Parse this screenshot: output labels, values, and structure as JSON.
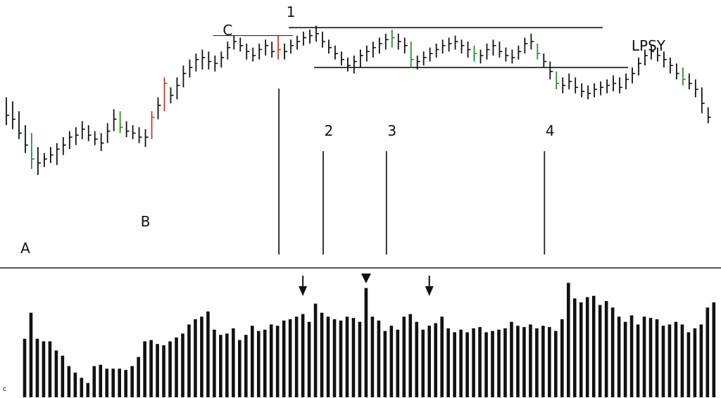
{
  "chart_data": [
    {
      "type": "bar",
      "subtype": "ohlc-price-bars",
      "title": "",
      "xlabel": "",
      "ylabel": "",
      "grid": false,
      "bar_count": 112,
      "ylim": [
        0,
        100
      ],
      "bars": [
        {
          "i": 0,
          "high": 73,
          "low": 59,
          "close": 64,
          "color": "#111111"
        },
        {
          "i": 1,
          "high": 71,
          "low": 57,
          "close": 62,
          "color": "#111111"
        },
        {
          "i": 2,
          "high": 66,
          "low": 52,
          "close": 55,
          "color": "#111111"
        },
        {
          "i": 3,
          "high": 59,
          "low": 45,
          "close": 49,
          "color": "#111111"
        },
        {
          "i": 4,
          "high": 55,
          "low": 37,
          "close": 42,
          "color": "#2e8b2e"
        },
        {
          "i": 5,
          "high": 48,
          "low": 34,
          "close": 40,
          "color": "#111111"
        },
        {
          "i": 6,
          "high": 45,
          "low": 38,
          "close": 42,
          "color": "#111111"
        },
        {
          "i": 7,
          "high": 48,
          "low": 40,
          "close": 44,
          "color": "#111111"
        },
        {
          "i": 8,
          "high": 50,
          "low": 39,
          "close": 47,
          "color": "#111111"
        },
        {
          "i": 9,
          "high": 53,
          "low": 44,
          "close": 49,
          "color": "#111111"
        },
        {
          "i": 10,
          "high": 56,
          "low": 47,
          "close": 53,
          "color": "#111111"
        },
        {
          "i": 11,
          "high": 58,
          "low": 49,
          "close": 54,
          "color": "#111111"
        },
        {
          "i": 12,
          "high": 61,
          "low": 52,
          "close": 57,
          "color": "#111111"
        },
        {
          "i": 13,
          "high": 59,
          "low": 51,
          "close": 54,
          "color": "#111111"
        },
        {
          "i": 14,
          "high": 56,
          "low": 49,
          "close": 52,
          "color": "#111111"
        },
        {
          "i": 15,
          "high": 55,
          "low": 46,
          "close": 50,
          "color": "#111111"
        },
        {
          "i": 16,
          "high": 60,
          "low": 50,
          "close": 56,
          "color": "#111111"
        },
        {
          "i": 17,
          "high": 67,
          "low": 56,
          "close": 62,
          "color": "#111111"
        },
        {
          "i": 18,
          "high": 66,
          "low": 55,
          "close": 58,
          "color": "#2e8b2e"
        },
        {
          "i": 19,
          "high": 61,
          "low": 53,
          "close": 56,
          "color": "#111111"
        },
        {
          "i": 20,
          "high": 59,
          "low": 52,
          "close": 55,
          "color": "#111111"
        },
        {
          "i": 21,
          "high": 58,
          "low": 50,
          "close": 53,
          "color": "#111111"
        },
        {
          "i": 22,
          "high": 57,
          "low": 48,
          "close": 53,
          "color": "#111111"
        },
        {
          "i": 23,
          "high": 66,
          "low": 52,
          "close": 63,
          "color": "#cc3333"
        },
        {
          "i": 24,
          "high": 73,
          "low": 62,
          "close": 69,
          "color": "#111111"
        },
        {
          "i": 25,
          "high": 83,
          "low": 66,
          "close": 80,
          "color": "#cc3333"
        },
        {
          "i": 26,
          "high": 78,
          "low": 70,
          "close": 74,
          "color": "#111111"
        },
        {
          "i": 27,
          "high": 83,
          "low": 72,
          "close": 79,
          "color": "#111111"
        },
        {
          "i": 28,
          "high": 89,
          "low": 78,
          "close": 85,
          "color": "#111111"
        },
        {
          "i": 29,
          "high": 92,
          "low": 83,
          "close": 88,
          "color": "#111111"
        },
        {
          "i": 30,
          "high": 95,
          "low": 86,
          "close": 92,
          "color": "#111111"
        },
        {
          "i": 31,
          "high": 97,
          "low": 87,
          "close": 93,
          "color": "#111111"
        },
        {
          "i": 32,
          "high": 96,
          "low": 87,
          "close": 91,
          "color": "#111111"
        },
        {
          "i": 33,
          "high": 94,
          "low": 86,
          "close": 90,
          "color": "#111111"
        },
        {
          "i": 34,
          "high": 96,
          "low": 88,
          "close": 93,
          "color": "#111111"
        },
        {
          "i": 35,
          "high": 101,
          "low": 92,
          "close": 98,
          "color": "#111111"
        },
        {
          "i": 36,
          "high": 104,
          "low": 97,
          "close": 101,
          "color": "#111111"
        },
        {
          "i": 37,
          "high": 103,
          "low": 96,
          "close": 99,
          "color": "#111111"
        },
        {
          "i": 38,
          "high": 100,
          "low": 92,
          "close": 96,
          "color": "#111111"
        },
        {
          "i": 39,
          "high": 98,
          "low": 91,
          "close": 94,
          "color": "#111111"
        },
        {
          "i": 40,
          "high": 100,
          "low": 92,
          "close": 97,
          "color": "#111111"
        },
        {
          "i": 41,
          "high": 102,
          "low": 94,
          "close": 99,
          "color": "#111111"
        },
        {
          "i": 42,
          "high": 101,
          "low": 93,
          "close": 96,
          "color": "#111111"
        },
        {
          "i": 43,
          "high": 104,
          "low": 92,
          "close": 97,
          "color": "#cc3333"
        },
        {
          "i": 44,
          "high": 100,
          "low": 92,
          "close": 96,
          "color": "#111111"
        },
        {
          "i": 45,
          "high": 102,
          "low": 95,
          "close": 99,
          "color": "#111111"
        },
        {
          "i": 46,
          "high": 104,
          "low": 97,
          "close": 101,
          "color": "#111111"
        },
        {
          "i": 47,
          "high": 106,
          "low": 99,
          "close": 103,
          "color": "#111111"
        },
        {
          "i": 48,
          "high": 107,
          "low": 100,
          "close": 104,
          "color": "#111111"
        },
        {
          "i": 49,
          "high": 109,
          "low": 101,
          "close": 105,
          "color": "#111111"
        },
        {
          "i": 50,
          "high": 106,
          "low": 98,
          "close": 101,
          "color": "#111111"
        },
        {
          "i": 51,
          "high": 102,
          "low": 95,
          "close": 98,
          "color": "#111111"
        },
        {
          "i": 52,
          "high": 99,
          "low": 92,
          "close": 95,
          "color": "#111111"
        },
        {
          "i": 53,
          "high": 96,
          "low": 89,
          "close": 92,
          "color": "#111111"
        },
        {
          "i": 54,
          "high": 93,
          "low": 86,
          "close": 89,
          "color": "#111111"
        },
        {
          "i": 55,
          "high": 94,
          "low": 85,
          "close": 91,
          "color": "#111111"
        },
        {
          "i": 56,
          "high": 97,
          "low": 88,
          "close": 94,
          "color": "#111111"
        },
        {
          "i": 57,
          "high": 99,
          "low": 91,
          "close": 96,
          "color": "#111111"
        },
        {
          "i": 58,
          "high": 101,
          "low": 93,
          "close": 98,
          "color": "#111111"
        },
        {
          "i": 59,
          "high": 103,
          "low": 95,
          "close": 100,
          "color": "#111111"
        },
        {
          "i": 60,
          "high": 105,
          "low": 97,
          "close": 102,
          "color": "#111111"
        },
        {
          "i": 61,
          "high": 107,
          "low": 98,
          "close": 103,
          "color": "#2e8b2e"
        },
        {
          "i": 62,
          "high": 105,
          "low": 97,
          "close": 101,
          "color": "#111111"
        },
        {
          "i": 63,
          "high": 103,
          "low": 95,
          "close": 99,
          "color": "#111111"
        },
        {
          "i": 64,
          "high": 101,
          "low": 88,
          "close": 92,
          "color": "#2e8b2e"
        },
        {
          "i": 65,
          "high": 94,
          "low": 87,
          "close": 91,
          "color": "#111111"
        },
        {
          "i": 66,
          "high": 96,
          "low": 89,
          "close": 93,
          "color": "#111111"
        },
        {
          "i": 67,
          "high": 98,
          "low": 91,
          "close": 95,
          "color": "#111111"
        },
        {
          "i": 68,
          "high": 100,
          "low": 93,
          "close": 97,
          "color": "#111111"
        },
        {
          "i": 69,
          "high": 102,
          "low": 95,
          "close": 99,
          "color": "#111111"
        },
        {
          "i": 70,
          "high": 103,
          "low": 96,
          "close": 100,
          "color": "#111111"
        },
        {
          "i": 71,
          "high": 104,
          "low": 97,
          "close": 101,
          "color": "#111111"
        },
        {
          "i": 72,
          "high": 102,
          "low": 95,
          "close": 99,
          "color": "#111111"
        },
        {
          "i": 73,
          "high": 101,
          "low": 93,
          "close": 97,
          "color": "#111111"
        },
        {
          "i": 74,
          "high": 99,
          "low": 91,
          "close": 95,
          "color": "#2e8b2e"
        },
        {
          "i": 75,
          "high": 97,
          "low": 90,
          "close": 94,
          "color": "#111111"
        },
        {
          "i": 76,
          "high": 100,
          "low": 92,
          "close": 97,
          "color": "#111111"
        },
        {
          "i": 77,
          "high": 102,
          "low": 94,
          "close": 99,
          "color": "#111111"
        },
        {
          "i": 78,
          "high": 101,
          "low": 93,
          "close": 96,
          "color": "#111111"
        },
        {
          "i": 79,
          "high": 98,
          "low": 91,
          "close": 94,
          "color": "#111111"
        },
        {
          "i": 80,
          "high": 97,
          "low": 90,
          "close": 93,
          "color": "#111111"
        },
        {
          "i": 81,
          "high": 99,
          "low": 92,
          "close": 96,
          "color": "#111111"
        },
        {
          "i": 82,
          "high": 103,
          "low": 95,
          "close": 100,
          "color": "#111111"
        },
        {
          "i": 83,
          "high": 105,
          "low": 97,
          "close": 101,
          "color": "#111111"
        },
        {
          "i": 84,
          "high": 100,
          "low": 92,
          "close": 95,
          "color": "#2e8b2e"
        },
        {
          "i": 85,
          "high": 95,
          "low": 88,
          "close": 91,
          "color": "#111111"
        },
        {
          "i": 86,
          "high": 91,
          "low": 82,
          "close": 86,
          "color": "#111111"
        },
        {
          "i": 87,
          "high": 86,
          "low": 77,
          "close": 80,
          "color": "#2e8b2e"
        },
        {
          "i": 88,
          "high": 83,
          "low": 75,
          "close": 79,
          "color": "#111111"
        },
        {
          "i": 89,
          "high": 85,
          "low": 77,
          "close": 81,
          "color": "#111111"
        },
        {
          "i": 90,
          "high": 83,
          "low": 75,
          "close": 78,
          "color": "#111111"
        },
        {
          "i": 91,
          "high": 80,
          "low": 73,
          "close": 76,
          "color": "#111111"
        },
        {
          "i": 92,
          "high": 79,
          "low": 72,
          "close": 75,
          "color": "#111111"
        },
        {
          "i": 93,
          "high": 80,
          "low": 73,
          "close": 77,
          "color": "#111111"
        },
        {
          "i": 94,
          "high": 81,
          "low": 74,
          "close": 78,
          "color": "#111111"
        },
        {
          "i": 95,
          "high": 82,
          "low": 75,
          "close": 79,
          "color": "#111111"
        },
        {
          "i": 96,
          "high": 84,
          "low": 76,
          "close": 80,
          "color": "#111111"
        },
        {
          "i": 97,
          "high": 83,
          "low": 75,
          "close": 78,
          "color": "#111111"
        },
        {
          "i": 98,
          "high": 85,
          "low": 77,
          "close": 82,
          "color": "#111111"
        },
        {
          "i": 99,
          "high": 88,
          "low": 80,
          "close": 85,
          "color": "#111111"
        },
        {
          "i": 100,
          "high": 93,
          "low": 84,
          "close": 90,
          "color": "#111111"
        },
        {
          "i": 101,
          "high": 97,
          "low": 89,
          "close": 94,
          "color": "#111111"
        },
        {
          "i": 102,
          "high": 99,
          "low": 92,
          "close": 96,
          "color": "#111111"
        },
        {
          "i": 103,
          "high": 98,
          "low": 91,
          "close": 94,
          "color": "#111111"
        },
        {
          "i": 104,
          "high": 96,
          "low": 88,
          "close": 92,
          "color": "#111111"
        },
        {
          "i": 105,
          "high": 93,
          "low": 85,
          "close": 89,
          "color": "#111111"
        },
        {
          "i": 106,
          "high": 90,
          "low": 82,
          "close": 85,
          "color": "#111111"
        },
        {
          "i": 107,
          "high": 88,
          "low": 79,
          "close": 82,
          "color": "#2e8b2e"
        },
        {
          "i": 108,
          "high": 85,
          "low": 77,
          "close": 80,
          "color": "#111111"
        },
        {
          "i": 109,
          "high": 82,
          "low": 73,
          "close": 77,
          "color": "#111111"
        },
        {
          "i": 110,
          "high": 78,
          "low": 65,
          "close": 70,
          "color": "#111111"
        },
        {
          "i": 111,
          "high": 68,
          "low": 60,
          "close": 63,
          "color": "#111111"
        }
      ],
      "levels": [
        {
          "name": "resistance-upper",
          "value": 108,
          "from": 45,
          "to": 94
        },
        {
          "name": "resistance-c",
          "value": 104,
          "from": 33,
          "to": 45
        },
        {
          "name": "support",
          "value": 88,
          "from": 49,
          "to": 98
        }
      ],
      "annotations": [
        {
          "label": "A",
          "bar": 3,
          "position": "below"
        },
        {
          "label": "B",
          "bar": 22,
          "position": "below"
        },
        {
          "label": "C",
          "bar": 35,
          "position": "above"
        },
        {
          "label": "1",
          "bar": 45,
          "position": "above"
        },
        {
          "label": "2",
          "bar": 51,
          "position": "below"
        },
        {
          "label": "3",
          "bar": 61,
          "position": "below"
        },
        {
          "label": "4",
          "bar": 86,
          "position": "below"
        },
        {
          "label": "LPSY",
          "bar": 101,
          "position": "above"
        }
      ]
    },
    {
      "type": "bar",
      "subtype": "volume",
      "title": "",
      "xlabel": "",
      "ylabel": "",
      "grid": false,
      "ylim": [
        0,
        100
      ],
      "values": [
        45,
        65,
        45,
        43,
        43,
        36,
        32,
        24,
        19,
        15,
        11,
        24,
        25,
        22,
        22,
        22,
        21,
        24,
        31,
        43,
        44,
        41,
        40,
        43,
        46,
        49,
        56,
        60,
        62,
        66,
        52,
        48,
        49,
        53,
        44,
        48,
        55,
        51,
        52,
        56,
        55,
        59,
        60,
        62,
        64,
        58,
        72,
        65,
        62,
        60,
        59,
        62,
        61,
        58,
        84,
        62,
        59,
        51,
        55,
        52,
        62,
        64,
        58,
        52,
        55,
        57,
        62,
        53,
        50,
        52,
        50,
        53,
        54,
        50,
        51,
        52,
        53,
        58,
        55,
        54,
        56,
        53,
        55,
        54,
        51,
        60,
        88,
        76,
        73,
        77,
        78,
        71,
        74,
        69,
        62,
        58,
        63,
        56,
        62,
        61,
        60,
        55,
        56,
        58,
        56,
        50,
        53,
        56,
        69,
        73,
        70,
        72
      ],
      "markers": [
        {
          "type": "arrow",
          "bar": 44
        },
        {
          "type": "triangle",
          "bar": 54
        },
        {
          "type": "arrow",
          "bar": 64
        }
      ]
    }
  ],
  "corner_label": "c"
}
